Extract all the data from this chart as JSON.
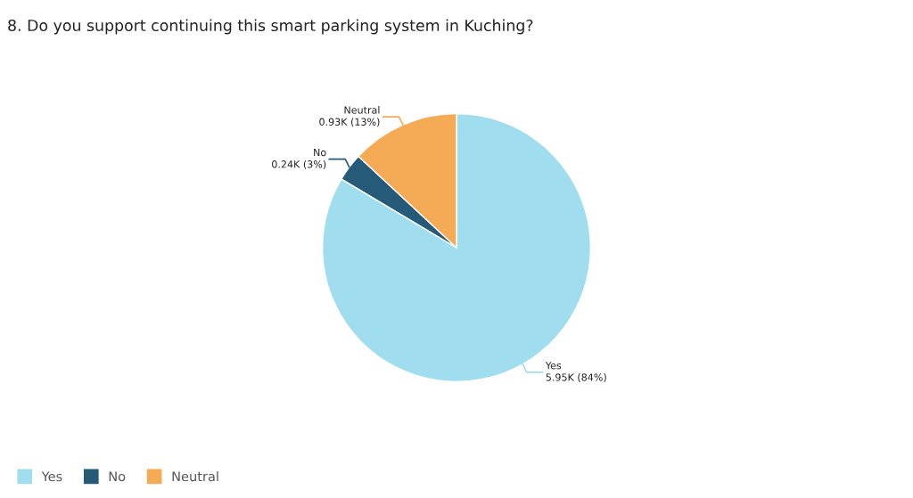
{
  "chart_data": {
    "type": "pie",
    "title": "8. Do you support continuing this smart parking system in Kuching?",
    "categories": [
      "Yes",
      "No",
      "Neutral"
    ],
    "values": [
      5950,
      240,
      930
    ],
    "value_labels": [
      "5.95K (84%)",
      "0.24K (3%)",
      "0.93K (13%)"
    ],
    "colors": [
      "#a0deef",
      "#255a78",
      "#f5ab55"
    ],
    "legend": "bottom left"
  }
}
